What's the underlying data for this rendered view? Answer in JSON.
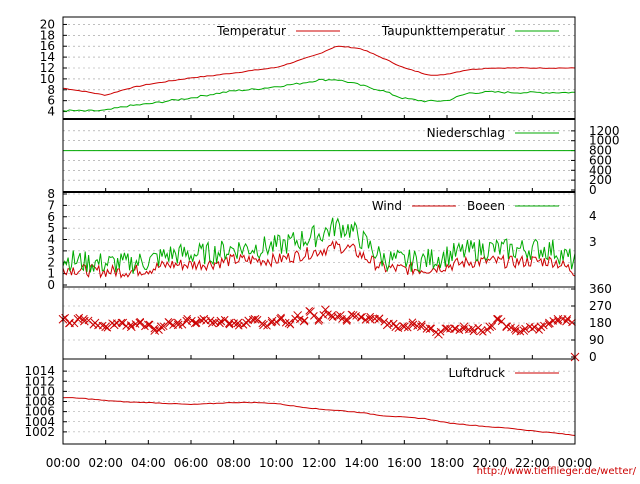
{
  "source_url": "http://www.tiefflieger.de/wetter/",
  "x_ticks": [
    "00:00",
    "02:00",
    "04:00",
    "06:00",
    "08:00",
    "10:00",
    "12:00",
    "14:00",
    "16:00",
    "18:00",
    "20:00",
    "22:00",
    "00:00"
  ],
  "chart_data": [
    {
      "type": "line",
      "x_range": [
        0,
        24
      ],
      "ylim": [
        3,
        21
      ],
      "y_ticks": [
        4,
        6,
        8,
        10,
        12,
        14,
        16,
        18,
        20
      ],
      "legend_placement": "top",
      "series": [
        {
          "name": "Temperatur",
          "color": "#cc0000",
          "x": [
            0,
            1,
            2,
            3,
            4,
            5,
            6,
            7,
            8,
            9,
            10,
            11,
            12,
            12.8,
            13.5,
            14,
            15,
            16,
            17,
            17.5,
            18,
            19,
            20,
            21,
            22,
            23,
            24
          ],
          "values": [
            8.3,
            7.7,
            7.0,
            8.2,
            9.0,
            9.6,
            10.2,
            10.6,
            11.1,
            11.6,
            12.1,
            13.3,
            14.6,
            16.0,
            15.8,
            15.5,
            13.8,
            12.0,
            10.9,
            10.6,
            10.9,
            11.7,
            12.0,
            12.0,
            12.0,
            12.0,
            12.0
          ]
        },
        {
          "name": "Taupunkttemperatur",
          "color": "#00aa00",
          "x": [
            0,
            1,
            2,
            2.5,
            3,
            4,
            5,
            6,
            7,
            8,
            9,
            10,
            11,
            12,
            12.8,
            13.5,
            14,
            15,
            15.8,
            16,
            17,
            18,
            19,
            20,
            21,
            22,
            23,
            24
          ],
          "values": [
            4.2,
            4.1,
            4.2,
            4.6,
            5.0,
            5.4,
            6.0,
            6.5,
            7.2,
            7.8,
            8.1,
            8.6,
            9.1,
            9.8,
            9.9,
            9.3,
            8.8,
            7.8,
            6.6,
            6.4,
            5.9,
            6.0,
            7.4,
            7.6,
            7.5,
            7.5,
            7.5,
            7.5
          ]
        }
      ]
    },
    {
      "type": "line",
      "x_range": [
        0,
        24
      ],
      "ylim": [
        0,
        1400
      ],
      "y_ticks": [
        0,
        200,
        400,
        600,
        800,
        1000,
        1200
      ],
      "y_axis_side": "right",
      "legend_placement": "top-right",
      "series": [
        {
          "name": "Niederschlag",
          "color": "#00aa00",
          "x": [
            0,
            24
          ],
          "values": [
            800,
            800
          ]
        }
      ]
    },
    {
      "type": "line",
      "x_range": [
        0,
        24
      ],
      "ylim": [
        0,
        8
      ],
      "y_ticks": [
        0,
        1,
        2,
        3,
        4,
        5,
        6,
        7,
        8
      ],
      "right_ticks": [
        "4",
        "3"
      ],
      "legend_placement": "top",
      "series": [
        {
          "name": "Wind",
          "color": "#cc0000",
          "x": [
            0,
            1,
            2,
            3,
            4,
            5,
            6,
            7,
            8,
            9,
            10,
            11,
            12,
            12.8,
            13.5,
            14,
            15,
            16,
            17,
            18,
            19,
            20,
            21,
            22,
            23,
            24
          ],
          "values": [
            1.5,
            1.3,
            1.2,
            1.2,
            1.4,
            1.8,
            1.8,
            1.9,
            2.2,
            2.2,
            2.2,
            2.6,
            3.0,
            3.4,
            3.2,
            2.6,
            1.5,
            1.4,
            1.4,
            1.7,
            2.0,
            2.1,
            2.0,
            2.1,
            2.1,
            1.2
          ]
        },
        {
          "name": "Boeen",
          "color": "#00aa00",
          "x": [
            0,
            1,
            2,
            3,
            4,
            5,
            6,
            7,
            8,
            9,
            10,
            11,
            12,
            12.8,
            13.5,
            14,
            15,
            16,
            17,
            18,
            19,
            20,
            21,
            22,
            23,
            24
          ],
          "values": [
            2.3,
            2.0,
            1.9,
            1.9,
            2.1,
            2.7,
            2.7,
            2.8,
            3.2,
            3.3,
            3.4,
            3.9,
            4.4,
            5.2,
            4.9,
            4.0,
            2.3,
            2.1,
            2.2,
            2.6,
            3.0,
            3.2,
            3.1,
            3.2,
            3.1,
            2.0
          ]
        }
      ]
    },
    {
      "type": "scatter",
      "x_range": [
        0,
        24
      ],
      "ylim": [
        0,
        360
      ],
      "y_ticks": [
        0,
        90,
        180,
        270,
        360
      ],
      "y_axis_side": "right",
      "series": [
        {
          "name": "",
          "color": "#cc0000",
          "marker": "x",
          "x": [
            0,
            0.3,
            0.7,
            1.0,
            1.5,
            2,
            2.4,
            2.8,
            3.2,
            3.6,
            4,
            4.3,
            4.6,
            5,
            5.4,
            5.8,
            6.2,
            6.6,
            7,
            7.4,
            7.8,
            8.2,
            8.6,
            9,
            9.4,
            9.8,
            10.2,
            10.6,
            11,
            11.3,
            11.6,
            12,
            12.3,
            12.6,
            13,
            13.3,
            13.6,
            14,
            14.4,
            14.8,
            15.2,
            15.6,
            16,
            16.4,
            16.8,
            17.2,
            17.6,
            18,
            18.4,
            18.8,
            19.2,
            19.6,
            20,
            20.4,
            20.8,
            21.2,
            21.6,
            22,
            22.4,
            22.8,
            23.2,
            23.6,
            24
          ],
          "values": [
            200,
            180,
            200,
            190,
            180,
            160,
            170,
            180,
            160,
            180,
            170,
            140,
            160,
            180,
            170,
            190,
            180,
            200,
            180,
            190,
            180,
            180,
            180,
            200,
            170,
            190,
            200,
            180,
            220,
            190,
            240,
            200,
            250,
            220,
            220,
            200,
            220,
            210,
            200,
            200,
            170,
            160,
            160,
            170,
            160,
            150,
            120,
            150,
            150,
            160,
            150,
            140,
            160,
            200,
            160,
            150,
            140,
            150,
            160,
            180,
            200,
            190,
            0
          ]
        }
      ]
    },
    {
      "type": "line",
      "x_range": [
        0,
        24
      ],
      "ylim": [
        1000,
        1016
      ],
      "y_ticks": [
        1002,
        1004,
        1006,
        1008,
        1010,
        1012,
        1014
      ],
      "legend_placement": "top-right",
      "series": [
        {
          "name": "Luftdruck",
          "color": "#cc0000",
          "x": [
            0,
            1,
            2,
            3,
            4,
            5,
            6,
            7,
            8,
            9,
            10,
            11,
            12,
            13,
            14,
            15,
            16,
            17,
            18,
            19,
            20,
            21,
            22,
            23,
            24
          ],
          "values": [
            1008.8,
            1008.6,
            1008.2,
            1007.9,
            1007.8,
            1007.6,
            1007.4,
            1007.6,
            1007.8,
            1007.8,
            1007.6,
            1007.0,
            1006.5,
            1006.2,
            1005.8,
            1005.2,
            1004.9,
            1004.6,
            1003.8,
            1003.4,
            1003.0,
            1002.7,
            1002.2,
            1001.8,
            1001.3
          ]
        }
      ]
    }
  ]
}
